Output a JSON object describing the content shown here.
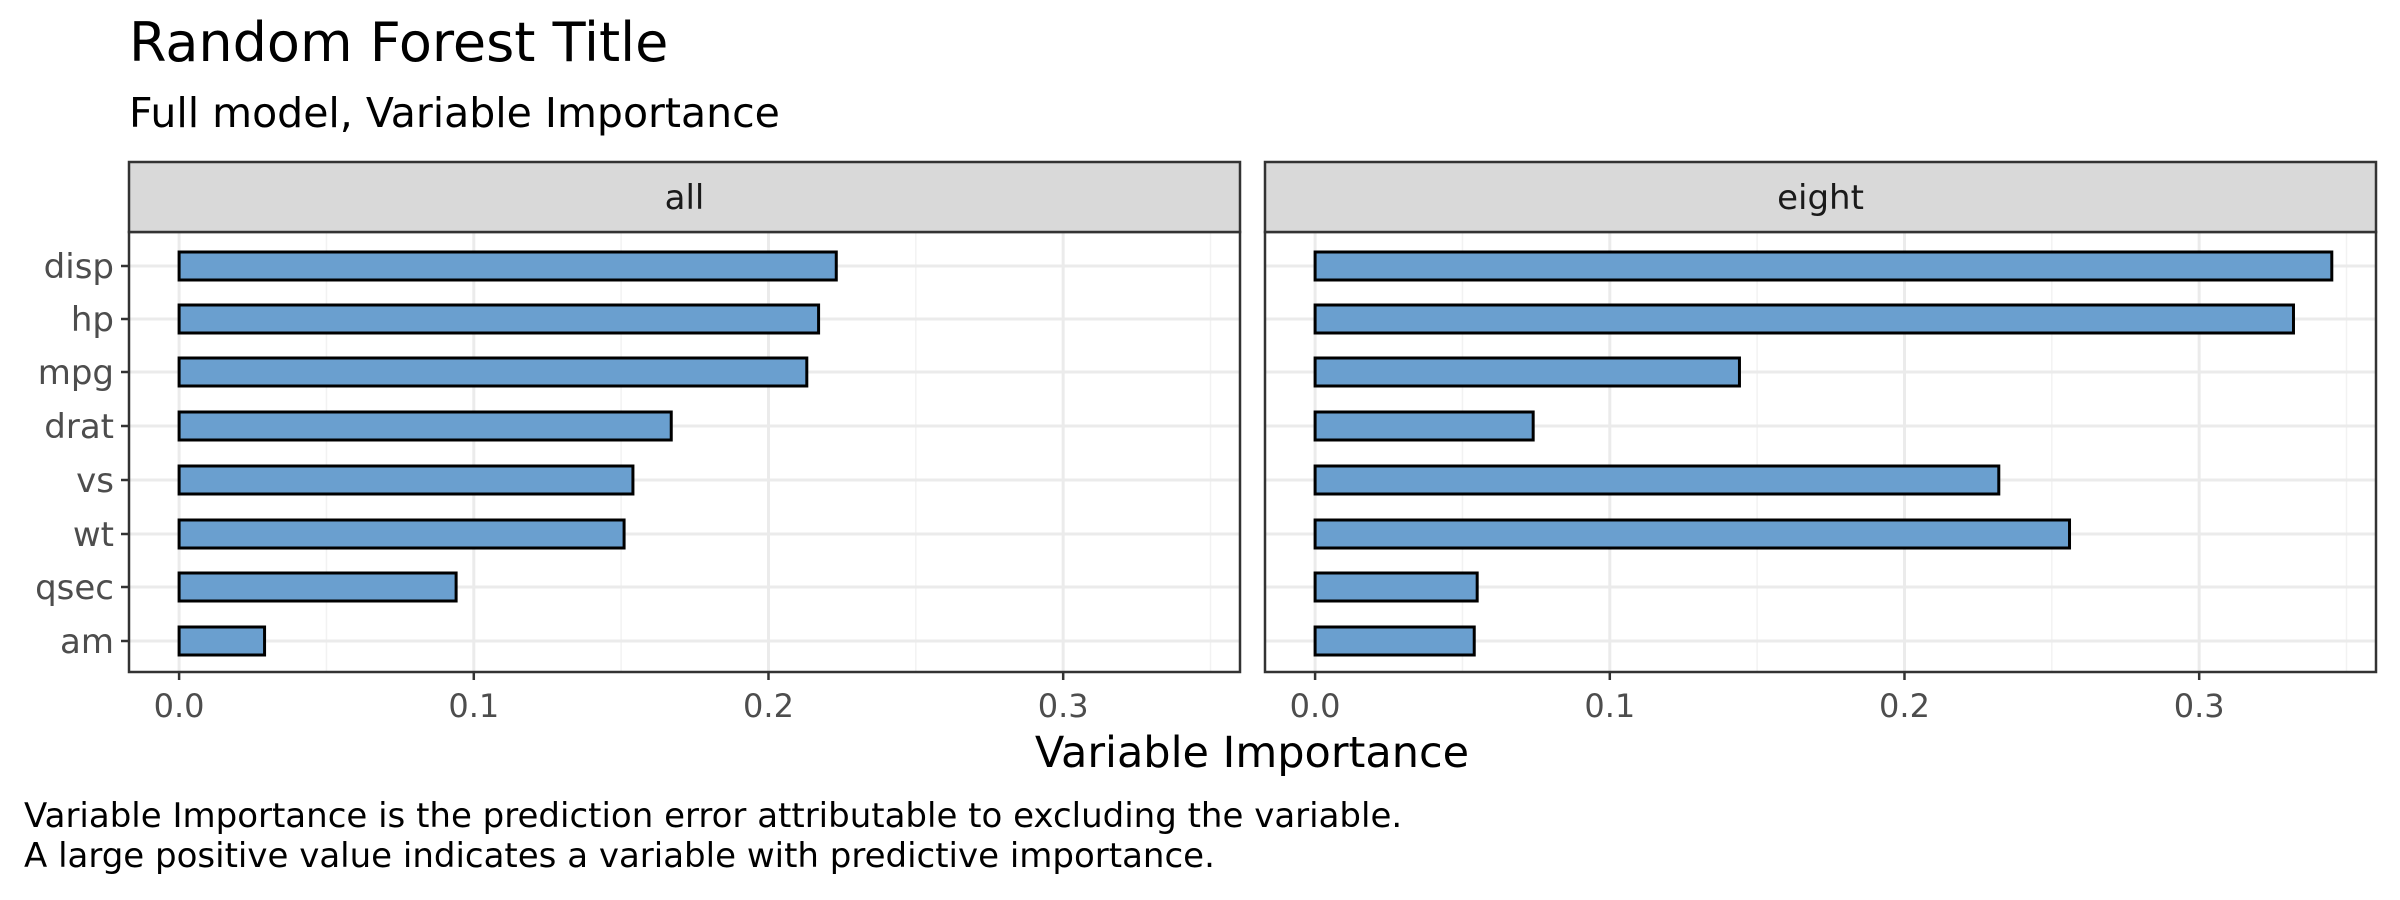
{
  "chart_data": {
    "type": "bar",
    "orientation": "horizontal",
    "title": "Random Forest Title",
    "subtitle": "Full model, Variable Importance",
    "xlabel": "Variable Importance",
    "ylabel": "",
    "categories": [
      "disp",
      "hp",
      "mpg",
      "drat",
      "vs",
      "wt",
      "qsec",
      "am"
    ],
    "xlim": [
      -0.017,
      0.36
    ],
    "x_ticks": [
      "0.0",
      "0.1",
      "0.2",
      "0.3"
    ],
    "x_tick_values": [
      0,
      0.1,
      0.2,
      0.3
    ],
    "grid": true,
    "bar_color": "#6A9FCF",
    "bar_edge_color": "#000000",
    "panels": [
      {
        "name": "all",
        "values": [
          0.223,
          0.217,
          0.213,
          0.167,
          0.154,
          0.151,
          0.094,
          0.029
        ]
      },
      {
        "name": "eight",
        "values": [
          0.345,
          0.332,
          0.144,
          0.074,
          0.232,
          0.256,
          0.055,
          0.054
        ]
      }
    ],
    "caption": [
      "Variable Importance is the prediction error attributable to excluding the variable.",
      "A large positive value indicates a variable with predictive importance."
    ]
  }
}
